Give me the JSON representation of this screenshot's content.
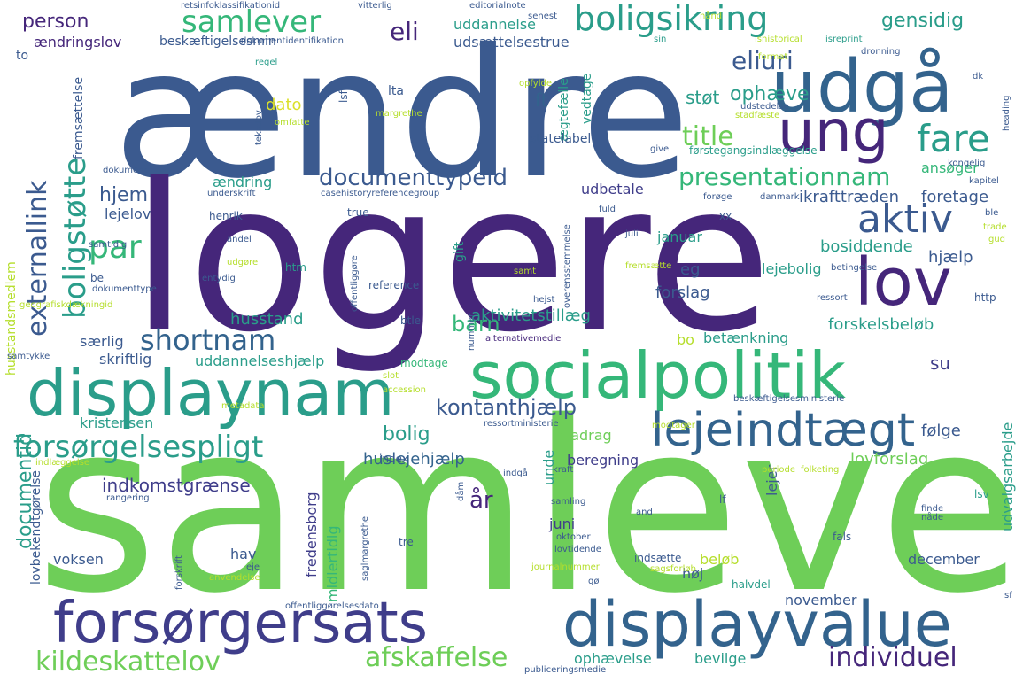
{
  "palette": {
    "dark_purple": "#45267a",
    "indigo": "#3f3d8a",
    "slate_blue": "#3b5a8f",
    "steel_blue": "#33638d",
    "teal": "#21918c",
    "teal_green": "#2a9d8a",
    "green": "#35b779",
    "light_green": "#6ece58",
    "lime": "#b5de2b",
    "yellow": "#dbe02a"
  },
  "words": [
    {
      "text": "ændre",
      "color": "#3b5a8f"
    },
    {
      "text": "logere",
      "color": "#45267a"
    },
    {
      "text": "samleve",
      "color": "#6ece58"
    },
    {
      "text": "socialpolitik",
      "color": "#35b779"
    },
    {
      "text": "displaynam",
      "color": "#2a9d8a"
    },
    {
      "text": "udgå",
      "color": "#33638d"
    },
    {
      "text": "ung",
      "color": "#45267a"
    },
    {
      "text": "lov",
      "color": "#45267a"
    },
    {
      "text": "lejeindtægt",
      "color": "#33638d"
    },
    {
      "text": "forsørgersats",
      "color": "#3f3d8a"
    },
    {
      "text": "displayvalue",
      "color": "#33638d"
    },
    {
      "text": "boligsikring",
      "color": "#2a9d8a"
    },
    {
      "text": "samlever",
      "color": "#35b779"
    },
    {
      "text": "forsørgelsespligt",
      "color": "#2a9d8a"
    },
    {
      "text": "boligstøtte",
      "color": "#2a9d8a"
    },
    {
      "text": "fare",
      "color": "#2a9d8a"
    },
    {
      "text": "aktiv",
      "color": "#3b5a8f"
    },
    {
      "text": "eliuri",
      "color": "#3b5a8f"
    },
    {
      "text": "documenttypeid",
      "color": "#3b5a8f"
    },
    {
      "text": "presentationnam",
      "color": "#35b779"
    },
    {
      "text": "externallink",
      "color": "#3b5a8f"
    },
    {
      "text": "shortnam",
      "color": "#33638d"
    },
    {
      "text": "par",
      "color": "#35b779"
    },
    {
      "text": "title",
      "color": "#6ece58"
    },
    {
      "text": "kildeskattelov",
      "color": "#6ece58"
    },
    {
      "text": "afskaffelse",
      "color": "#6ece58"
    },
    {
      "text": "individuel",
      "color": "#45267a"
    },
    {
      "text": "kontanthjælp",
      "color": "#3b5a8f"
    },
    {
      "text": "gensidig",
      "color": "#2a9d8a"
    },
    {
      "text": "ophæve",
      "color": "#2a9d8a"
    },
    {
      "text": "eli",
      "color": "#45267a"
    },
    {
      "text": "person",
      "color": "#45267a"
    },
    {
      "text": "hjem",
      "color": "#3b5a8f"
    },
    {
      "text": "barn",
      "color": "#35b779"
    },
    {
      "text": "bolig",
      "color": "#2a9d8a"
    },
    {
      "text": "documentid",
      "color": "#2a9d8a"
    },
    {
      "text": "huslejehjælp",
      "color": "#33638d"
    },
    {
      "text": "indkomstgrænse",
      "color": "#3f3d8a"
    },
    {
      "text": "år",
      "color": "#45267a"
    },
    {
      "text": "ændringslov",
      "color": "#45267a"
    },
    {
      "text": "beskæftigelsesmin",
      "color": "#3b5a8f"
    },
    {
      "text": "uddannelse",
      "color": "#2a9d8a"
    },
    {
      "text": "udsættelsestrue",
      "color": "#3b5a8f"
    },
    {
      "text": "ft",
      "color": "#33638d"
    },
    {
      "text": "støt",
      "color": "#2a9d8a"
    },
    {
      "text": "ændring",
      "color": "#2a9d8a"
    },
    {
      "text": "lejelov",
      "color": "#3b5a8f"
    },
    {
      "text": "ikrafttræden",
      "color": "#3b5a8f"
    },
    {
      "text": "foretage",
      "color": "#3b5a8f"
    },
    {
      "text": "udbetale",
      "color": "#3f3d8a"
    },
    {
      "text": "ansøger",
      "color": "#35b779"
    },
    {
      "text": "januar",
      "color": "#2a9d8a"
    },
    {
      "text": "bosiddende",
      "color": "#2a9d8a"
    },
    {
      "text": "hjælp",
      "color": "#3b5a8f"
    },
    {
      "text": "lejebolig",
      "color": "#2a9d8a"
    },
    {
      "text": "forslag",
      "color": "#3b5a8f"
    },
    {
      "text": "eg",
      "color": "#3b5a8f"
    },
    {
      "text": "aktivitetstillæg",
      "color": "#2a9d8a"
    },
    {
      "text": "husstand",
      "color": "#2a9d8a"
    },
    {
      "text": "forskelsbeløb",
      "color": "#2a9d8a"
    },
    {
      "text": "betænkning",
      "color": "#2a9d8a"
    },
    {
      "text": "bo",
      "color": "#b5de2b"
    },
    {
      "text": "særlig",
      "color": "#3b5a8f"
    },
    {
      "text": "skriftlig",
      "color": "#3b5a8f"
    },
    {
      "text": "uddannelseshjælp",
      "color": "#2a9d8a"
    },
    {
      "text": "modtage",
      "color": "#35b779"
    },
    {
      "text": "su",
      "color": "#3f3d8a"
    },
    {
      "text": "følge",
      "color": "#3b5a8f"
    },
    {
      "text": "kristensen",
      "color": "#2a9d8a"
    },
    {
      "text": "fradrag",
      "color": "#6ece58"
    },
    {
      "text": "beregning",
      "color": "#3f3d8a"
    },
    {
      "text": "lovforslag",
      "color": "#6ece58"
    },
    {
      "text": "unde",
      "color": "#2a9d8a"
    },
    {
      "text": "lejer",
      "color": "#3b5a8f"
    },
    {
      "text": "udvalgsarbejde",
      "color": "#2a9d8a"
    },
    {
      "text": "voksen",
      "color": "#3b5a8f"
    },
    {
      "text": "hav",
      "color": "#3b5a8f"
    },
    {
      "text": "juni",
      "color": "#3f3d8a"
    },
    {
      "text": "beløb",
      "color": "#b5de2b"
    },
    {
      "text": "høj",
      "color": "#3b5a8f"
    },
    {
      "text": "december",
      "color": "#3b5a8f"
    },
    {
      "text": "november",
      "color": "#3b5a8f"
    },
    {
      "text": "midlertidig",
      "color": "#35b779"
    },
    {
      "text": "fredensborg",
      "color": "#3f3d8a"
    },
    {
      "text": "ophævelse",
      "color": "#2a9d8a"
    },
    {
      "text": "bevilge",
      "color": "#2a9d8a"
    },
    {
      "text": "halvdel",
      "color": "#2a9d8a"
    },
    {
      "text": "dato",
      "color": "#dbe02a"
    },
    {
      "text": "lta",
      "color": "#3b5a8f"
    },
    {
      "text": "vedtage",
      "color": "#2a9d8a"
    },
    {
      "text": "ægtefælle",
      "color": "#2a9d8a"
    },
    {
      "text": "statelabel",
      "color": "#3b5a8f"
    },
    {
      "text": "fremsættelse",
      "color": "#3b5a8f"
    },
    {
      "text": "husstandsmedlem",
      "color": "#b5de2b"
    },
    {
      "text": "lovbekendtgørelse",
      "color": "#3b5a8f"
    },
    {
      "text": "gift",
      "color": "#2a9d8a"
    },
    {
      "text": "reference",
      "color": "#3b5a8f"
    },
    {
      "text": "btle",
      "color": "#3b5a8f"
    },
    {
      "text": "htm",
      "color": "#2a9d8a"
    },
    {
      "text": "true",
      "color": "#3b5a8f"
    },
    {
      "text": "lsf",
      "color": "#3b5a8f"
    },
    {
      "text": "lf",
      "color": "#3b5a8f"
    },
    {
      "text": "lsv",
      "color": "#2a9d8a"
    },
    {
      "text": "http",
      "color": "#3b5a8f"
    },
    {
      "text": "to",
      "color": "#3b5a8f"
    },
    {
      "text": "be",
      "color": "#3b5a8f"
    },
    {
      "text": "xx",
      "color": "#3b5a8f"
    },
    {
      "text": "fals",
      "color": "#3b5a8f"
    },
    {
      "text": "tre",
      "color": "#3b5a8f"
    },
    {
      "text": "index",
      "color": "#3b5a8f"
    },
    {
      "text": "henrik",
      "color": "#3b5a8f"
    },
    {
      "text": "retsinfoklassifikationid",
      "color": "#3b5a8f"
    },
    {
      "text": "vitterlig",
      "color": "#3b5a8f"
    },
    {
      "text": "editorialnote",
      "color": "#3b5a8f"
    },
    {
      "text": "senest",
      "color": "#3b5a8f"
    },
    {
      "text": "sin",
      "color": "#2a9d8a"
    },
    {
      "text": "ishistorical",
      "color": "#b5de2b"
    },
    {
      "text": "isreprint",
      "color": "#2a9d8a"
    },
    {
      "text": "dronning",
      "color": "#3b5a8f"
    },
    {
      "text": "dokumentidentifikation",
      "color": "#3b5a8f"
    },
    {
      "text": "regel",
      "color": "#2a9d8a"
    },
    {
      "text": "format",
      "color": "#b5de2b"
    },
    {
      "text": "dk",
      "color": "#3b5a8f"
    },
    {
      "text": "heading",
      "color": "#3b5a8f"
    },
    {
      "text": "stadfæste",
      "color": "#b5de2b"
    },
    {
      "text": "udstedelse",
      "color": "#3b5a8f"
    },
    {
      "text": "margrethe",
      "color": "#b5de2b"
    },
    {
      "text": "omfatte",
      "color": "#b5de2b"
    },
    {
      "text": "opfylde",
      "color": "#b5de2b"
    },
    {
      "text": "tekstlov",
      "color": "#3b5a8f"
    },
    {
      "text": "give",
      "color": "#3b5a8f"
    },
    {
      "text": "førstegangsindlæggelse",
      "color": "#2a9d8a"
    },
    {
      "text": "kongelig",
      "color": "#3b5a8f"
    },
    {
      "text": "kapitel",
      "color": "#3b5a8f"
    },
    {
      "text": "dokument",
      "color": "#3b5a8f"
    },
    {
      "text": "underskrift",
      "color": "#3b5a8f"
    },
    {
      "text": "casehistoryreferencegroup",
      "color": "#3b5a8f"
    },
    {
      "text": "danmark",
      "color": "#3b5a8f"
    },
    {
      "text": "forøge",
      "color": "#3b5a8f"
    },
    {
      "text": "fuld",
      "color": "#3b5a8f"
    },
    {
      "text": "juli",
      "color": "#3b5a8f"
    },
    {
      "text": "ble",
      "color": "#3b5a8f"
    },
    {
      "text": "trade",
      "color": "#b5de2b"
    },
    {
      "text": "gud",
      "color": "#b5de2b"
    },
    {
      "text": "andel",
      "color": "#3b5a8f"
    },
    {
      "text": "samtidig",
      "color": "#3b5a8f"
    },
    {
      "text": "udgøre",
      "color": "#b5de2b"
    },
    {
      "text": "entydig",
      "color": "#3b5a8f"
    },
    {
      "text": "dokumenttype",
      "color": "#3b5a8f"
    },
    {
      "text": "geografiskdækningid",
      "color": "#b5de2b"
    },
    {
      "text": "offentliggøre",
      "color": "#3b5a8f"
    },
    {
      "text": "fremsætte",
      "color": "#b5de2b"
    },
    {
      "text": "overensstemmelse",
      "color": "#3b5a8f"
    },
    {
      "text": "betingelse",
      "color": "#3b5a8f"
    },
    {
      "text": "ressort",
      "color": "#3b5a8f"
    },
    {
      "text": "samt",
      "color": "#b5de2b"
    },
    {
      "text": "hejst",
      "color": "#3b5a8f"
    },
    {
      "text": "samtykke",
      "color": "#3b5a8f"
    },
    {
      "text": "slot",
      "color": "#b5de2b"
    },
    {
      "text": "accession",
      "color": "#b5de2b"
    },
    {
      "text": "alternativemedie",
      "color": "#45267a"
    },
    {
      "text": "nummer",
      "color": "#3b5a8f"
    },
    {
      "text": "metadata",
      "color": "#b5de2b"
    },
    {
      "text": "ressortministerie",
      "color": "#3b5a8f"
    },
    {
      "text": "beskæftigelsesministerie",
      "color": "#3b5a8f"
    },
    {
      "text": "modtager",
      "color": "#b5de2b"
    },
    {
      "text": "indlæggelse",
      "color": "#b5de2b"
    },
    {
      "text": "indgå",
      "color": "#3b5a8f"
    },
    {
      "text": "kraft",
      "color": "#3b5a8f"
    },
    {
      "text": "periode",
      "color": "#b5de2b"
    },
    {
      "text": "folketing",
      "color": "#b5de2b"
    },
    {
      "text": "rangering",
      "color": "#3b5a8f"
    },
    {
      "text": "saglmargrethe",
      "color": "#3b5a8f"
    },
    {
      "text": "dåm",
      "color": "#3b5a8f"
    },
    {
      "text": "samling",
      "color": "#3b5a8f"
    },
    {
      "text": "and",
      "color": "#3b5a8f"
    },
    {
      "text": "oktober",
      "color": "#3b5a8f"
    },
    {
      "text": "lovtidende",
      "color": "#3b5a8f"
    },
    {
      "text": "nåde",
      "color": "#3b5a8f"
    },
    {
      "text": "finde",
      "color": "#3b5a8f"
    },
    {
      "text": "forskrift",
      "color": "#3b5a8f"
    },
    {
      "text": "eje",
      "color": "#3b5a8f"
    },
    {
      "text": "anvendelse",
      "color": "#b5de2b"
    },
    {
      "text": "journalnummer",
      "color": "#b5de2b"
    },
    {
      "text": "sagsforløb",
      "color": "#b5de2b"
    },
    {
      "text": "gø",
      "color": "#3b5a8f"
    },
    {
      "text": "indsætte",
      "color": "#3b5a8f"
    },
    {
      "text": "offentliggørelsesdato",
      "color": "#3b5a8f"
    },
    {
      "text": "publiceringsmedie",
      "color": "#3b5a8f"
    },
    {
      "text": "sf",
      "color": "#3b5a8f"
    },
    {
      "text": "hånd",
      "color": "#b5de2b"
    }
  ]
}
